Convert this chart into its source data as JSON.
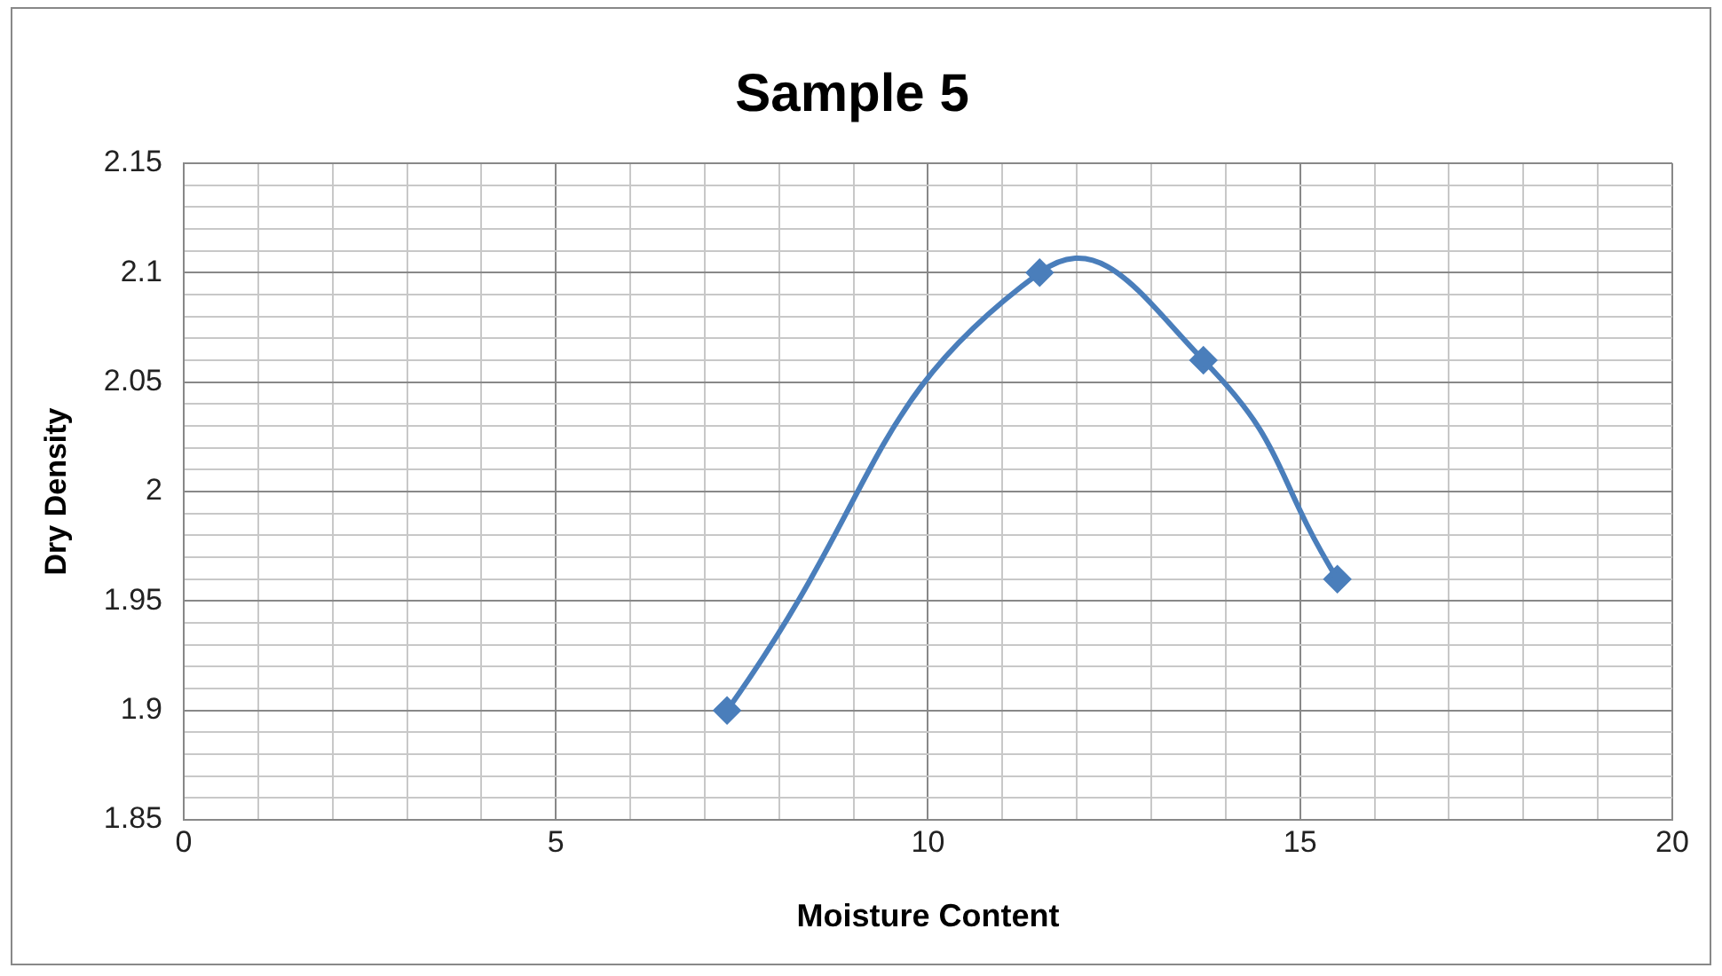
{
  "chart_data": {
    "type": "line",
    "title": "Sample 5",
    "xlabel": "Moisture Content",
    "ylabel": "Dry Density",
    "x": [
      7.3,
      11.5,
      13.7,
      15.5
    ],
    "series": [
      {
        "color": "#4a7ebb",
        "values": [
          1.9,
          2.1,
          2.06,
          1.96
        ]
      }
    ],
    "xlim": [
      0,
      20
    ],
    "xticks": [
      0,
      {
        "value": 1,
        "label": null
      },
      {
        "value": 2,
        "label": null
      },
      {
        "value": 3,
        "label": null
      },
      {
        "value": 4,
        "label": null
      },
      5,
      {
        "value": 6,
        "label": null
      },
      {
        "value": 7,
        "label": null
      },
      {
        "value": 8,
        "label": null
      },
      {
        "value": 9,
        "label": null
      },
      10,
      {
        "value": 11,
        "label": null
      },
      {
        "value": 12,
        "label": null
      },
      {
        "value": 13,
        "label": null
      },
      {
        "value": 14,
        "label": null
      },
      15,
      {
        "value": 16,
        "label": null
      },
      {
        "value": 17,
        "label": null
      },
      {
        "value": 18,
        "label": null
      },
      {
        "value": 19,
        "label": null
      },
      20
    ],
    "ylim": [
      1.85,
      2.15
    ],
    "yticks": [
      1.85,
      {
        "value": 1.86,
        "label": null
      },
      {
        "value": 1.87,
        "label": null
      },
      {
        "value": 1.88,
        "label": null
      },
      {
        "value": 1.89,
        "label": null
      },
      1.9,
      {
        "value": 1.91,
        "label": null
      },
      {
        "value": 1.92,
        "label": null
      },
      {
        "value": 1.93,
        "label": null
      },
      {
        "value": 1.94,
        "label": null
      },
      1.95,
      {
        "value": 1.96,
        "label": null
      },
      {
        "value": 1.97,
        "label": null
      },
      {
        "value": 1.98,
        "label": null
      },
      {
        "value": 1.99,
        "label": null
      },
      2,
      {
        "value": 2.01,
        "label": null
      },
      {
        "value": 2.02,
        "label": null
      },
      {
        "value": 2.03,
        "label": null
      },
      {
        "value": 2.04,
        "label": null
      },
      2.05,
      {
        "value": 2.06,
        "label": null
      },
      {
        "value": 2.07,
        "label": null
      },
      {
        "value": 2.08,
        "label": null
      },
      {
        "value": 2.09,
        "label": null
      },
      2.1,
      {
        "value": 2.11,
        "label": null
      },
      {
        "value": 2.12,
        "label": null
      },
      {
        "value": 2.13,
        "label": null
      },
      {
        "value": 2.14,
        "label": null
      },
      2.15
    ],
    "grid": true,
    "legend": false,
    "marker": "diamond",
    "line_style": "solid"
  }
}
